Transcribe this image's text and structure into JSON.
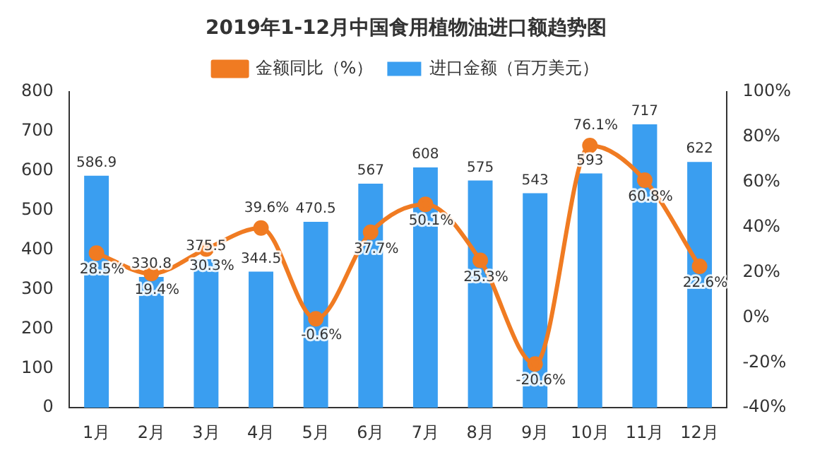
{
  "chart_data": {
    "type": "bar",
    "title": "2019年1-12月中国食用植物油进口额趋势图",
    "categories": [
      "1月",
      "2月",
      "3月",
      "4月",
      "5月",
      "6月",
      "7月",
      "8月",
      "9月",
      "10月",
      "11月",
      "12月"
    ],
    "series": [
      {
        "name": "进口金额（百万美元）",
        "color": "#3a9ef0",
        "values": [
          586.9,
          330.8,
          375.5,
          344.5,
          470.5,
          567,
          608,
          575,
          543,
          593,
          717,
          622
        ],
        "value_labels": [
          "586.9",
          "330.8",
          "375.5",
          "344.5",
          "470.5",
          "567",
          "608",
          "575",
          "543",
          "593",
          "717",
          "622"
        ]
      },
      {
        "name": "金额同比（%）",
        "type": "line",
        "axis": "y2",
        "color": "#f07b22",
        "values": [
          28.5,
          19.4,
          30.3,
          39.6,
          -0.6,
          37.7,
          50.1,
          25.3,
          -20.6,
          76.1,
          60.8,
          22.6
        ],
        "value_labels": [
          "28.5%",
          "19.4%",
          "30.3%",
          "39.6%",
          "-0.6%",
          "37.7%",
          "50.1%",
          "25.3%",
          "-20.6%",
          "76.1%",
          "60.8%",
          "22.6%"
        ]
      }
    ],
    "ylim": [
      0,
      800
    ],
    "yticks": [
      0,
      100,
      200,
      300,
      400,
      500,
      600,
      700,
      800
    ],
    "y2lim": [
      -40,
      100
    ],
    "y2ticks": [
      {
        "value": -40,
        "label": "-40%"
      },
      {
        "value": -20,
        "label": "-20%"
      },
      {
        "value": 0,
        "label": "0%"
      },
      {
        "value": 20,
        "label": "20%"
      },
      {
        "value": 40,
        "label": "40%"
      },
      {
        "value": 60,
        "label": "60%"
      },
      {
        "value": 80,
        "label": "80%"
      },
      {
        "value": 100,
        "label": "100%"
      }
    ],
    "legend": "top",
    "marker": "circle"
  }
}
